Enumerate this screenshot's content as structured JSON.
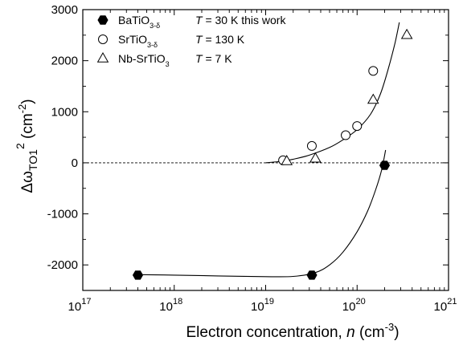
{
  "chart_data": {
    "type": "scatter",
    "title": "",
    "xlabel": "Electron concentration, n (cm⁻³)",
    "ylabel": "ΔωTO1² (cm⁻²)",
    "x_scale": "log",
    "xlim": [
      1e+17,
      1e+21
    ],
    "ylim": [
      -2500,
      3000
    ],
    "x_tick_labels": [
      "10",
      "10",
      "10",
      "10",
      "10"
    ],
    "x_tick_exponents": [
      "17",
      "18",
      "19",
      "20",
      "21"
    ],
    "x_ticks": [
      1e+17,
      1e+18,
      1e+19,
      1e+20,
      1e+21
    ],
    "y_ticks": [
      -2000,
      -1000,
      0,
      1000,
      2000,
      3000
    ],
    "y_tick_labels": [
      "-2000",
      "-1000",
      "0",
      "1000",
      "2000",
      "3000"
    ],
    "grid": false,
    "legend_position": "top-left",
    "reference_line_y": 0,
    "series": [
      {
        "name": "BaTiO3-δ",
        "marker": "hexagon-filled",
        "legend_label": "BaTiO",
        "legend_sub": "3-δ",
        "legend_temp": "= 30 K  this work",
        "points": [
          [
            4e+17,
            -2200
          ],
          [
            3.2e+19,
            -2200
          ],
          [
            2e+20,
            -50
          ]
        ],
        "fit_curve": [
          [
            4e+17,
            -2190
          ],
          [
            1e+18,
            -2200
          ],
          [
            3e+18,
            -2215
          ],
          [
            1e+19,
            -2230
          ],
          [
            2e+19,
            -2225
          ],
          [
            3.5e+19,
            -2150
          ],
          [
            5e+19,
            -2000
          ],
          [
            7e+19,
            -1750
          ],
          [
            1e+20,
            -1350
          ],
          [
            1.3e+20,
            -950
          ],
          [
            1.6e+20,
            -520
          ],
          [
            1.85e+20,
            -150
          ],
          [
            2.05e+20,
            250
          ]
        ]
      },
      {
        "name": "SrTiO3-δ",
        "marker": "circle-open",
        "legend_label": "SrTiO",
        "legend_sub": "3-δ",
        "legend_temp": "= 130 K",
        "points": [
          [
            1.55e+19,
            50
          ],
          [
            3.2e+19,
            330
          ],
          [
            7.5e+19,
            540
          ],
          [
            1e+20,
            720
          ],
          [
            1.5e+20,
            1800
          ]
        ],
        "fit_curve": []
      },
      {
        "name": "Nb-SrTiO3",
        "marker": "triangle-open",
        "legend_label": "Nb-SrTiO",
        "legend_sub": "3",
        "legend_temp": "= 7 K",
        "points": [
          [
            1.7e+19,
            30
          ],
          [
            3.5e+19,
            80
          ],
          [
            1.5e+20,
            1230
          ],
          [
            3.5e+20,
            2500
          ]
        ],
        "fit_curve": []
      }
    ],
    "shared_fit_curve": [
      [
        1e+19,
        0
      ],
      [
        1.5e+19,
        30
      ],
      [
        2e+19,
        70
      ],
      [
        3e+19,
        150
      ],
      [
        5e+19,
        300
      ],
      [
        7e+19,
        450
      ],
      [
        1e+20,
        650
      ],
      [
        1.4e+20,
        950
      ],
      [
        1.8e+20,
        1350
      ],
      [
        2.2e+20,
        1850
      ],
      [
        2.6e+20,
        2350
      ],
      [
        2.9e+20,
        2750
      ]
    ],
    "legend_temp_symbol": "T"
  }
}
